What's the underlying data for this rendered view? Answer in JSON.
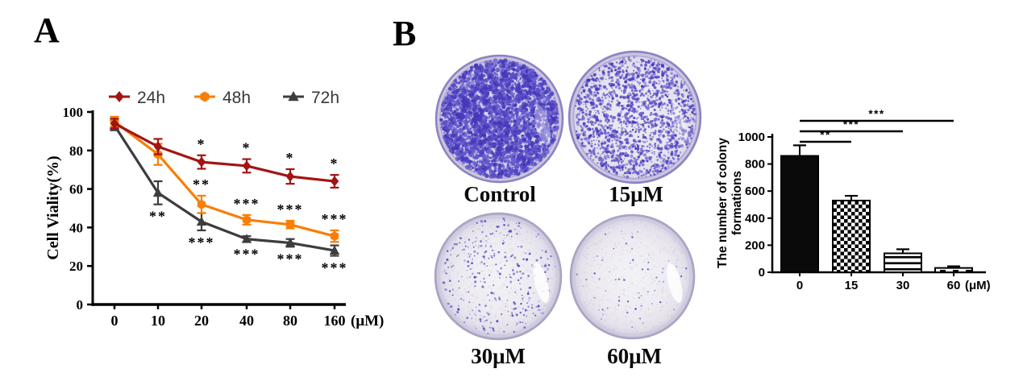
{
  "panels": {
    "a_label": "A",
    "b_label": "B"
  },
  "chart_data": [
    {
      "id": "cell_viability",
      "type": "line",
      "ylabel": "Cell Viality(%)",
      "x_unit": "(μM)",
      "x_tick_labels": [
        "0",
        "10",
        "20",
        "40",
        "80",
        "160"
      ],
      "ylim": [
        0,
        100
      ],
      "yticks": [
        0,
        20,
        40,
        60,
        80,
        100
      ],
      "grid": false,
      "legend_position": "top",
      "series": [
        {
          "name": "24h",
          "color": "#A31414",
          "marker": "diamond",
          "values": [
            94,
            82,
            74,
            72,
            66.5,
            64
          ],
          "errors": [
            2.5,
            4,
            3.5,
            3.5,
            3.8,
            3.3
          ],
          "significance": [
            {
              "i": 2,
              "label": "*",
              "pos": "above"
            },
            {
              "i": 3,
              "label": "*",
              "pos": "above"
            },
            {
              "i": 4,
              "label": "*",
              "pos": "above"
            },
            {
              "i": 5,
              "label": "*",
              "pos": "above"
            }
          ]
        },
        {
          "name": "48h",
          "color": "#F97E07",
          "marker": "hexagon",
          "values": [
            95,
            78,
            52,
            44,
            41.5,
            35.5
          ],
          "errors": [
            2.5,
            5.5,
            4.5,
            2.5,
            2,
            3
          ],
          "significance": [
            {
              "i": 2,
              "label": "**",
              "pos": "above"
            },
            {
              "i": 3,
              "label": "***",
              "pos": "above"
            },
            {
              "i": 4,
              "label": "***",
              "pos": "above"
            },
            {
              "i": 5,
              "label": "***",
              "pos": "above"
            }
          ]
        },
        {
          "name": "72h",
          "color": "#3D3D3D",
          "marker": "triangle",
          "values": [
            93,
            58,
            43,
            34,
            32,
            28
          ],
          "errors": [
            2.5,
            6,
            4.5,
            1.5,
            2,
            2.7
          ],
          "significance": [
            {
              "i": 1,
              "label": "**",
              "pos": "below"
            },
            {
              "i": 2,
              "label": "***",
              "pos": "below"
            },
            {
              "i": 3,
              "label": "***",
              "pos": "below"
            },
            {
              "i": 4,
              "label": "***",
              "pos": "below"
            },
            {
              "i": 5,
              "label": "***",
              "pos": "below"
            }
          ]
        }
      ]
    },
    {
      "id": "colony_formation",
      "type": "bar",
      "ylabel_lines": [
        "The number of colony",
        "formations"
      ],
      "categories": [
        "0",
        "15",
        "30",
        "60"
      ],
      "x_unit": "(μM)",
      "values": [
        860,
        530,
        140,
        32
      ],
      "errors": [
        78,
        35,
        30,
        12
      ],
      "ylim": [
        0,
        1000
      ],
      "yticks": [
        0,
        200,
        400,
        600,
        800,
        1000
      ],
      "bar_styles": [
        "solid",
        "checkerboard",
        "hlines",
        "dashes"
      ],
      "bar_color": "#0a0a0a",
      "comparisons": [
        {
          "from": 0,
          "to": 1,
          "label": "**"
        },
        {
          "from": 0,
          "to": 2,
          "label": "***"
        },
        {
          "from": 0,
          "to": 3,
          "label": "***"
        }
      ]
    }
  ],
  "colony_assay": {
    "stain_color": "#5247c2",
    "dishes": [
      {
        "label": "Control",
        "stain_density": 3600
      },
      {
        "label": "15μM",
        "stain_density": 1750
      },
      {
        "label": "30μM",
        "stain_density": 300
      },
      {
        "label": "60μM",
        "stain_density": 60
      }
    ]
  }
}
